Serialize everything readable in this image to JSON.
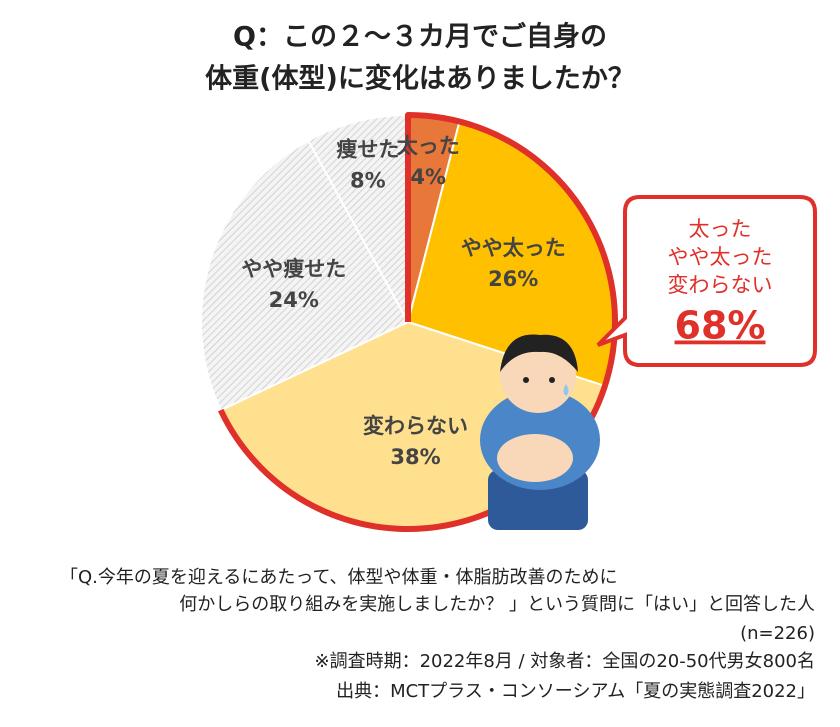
{
  "chart_data": {
    "type": "pie",
    "title": [
      "Q：この２～３カ月でご自身の",
      "体重(体型)に変化はありましたか？"
    ],
    "categories": [
      "太った",
      "やや太った",
      "変わらない",
      "やや痩せた",
      "痩せた"
    ],
    "values": [
      4,
      26,
      38,
      24,
      8
    ],
    "value_labels": [
      "4%",
      "26%",
      "38%",
      "24%",
      "8%"
    ],
    "colors": [
      "#e8783a",
      "#ffc000",
      "#ffe08f",
      "hatch",
      "hatch"
    ],
    "annotation": {
      "lines": [
        "太った",
        "やや太った",
        "変わらない"
      ],
      "total": "68%"
    },
    "notes": [
      "「Q.今年の夏を迎えるにあたって、体型や体重・体脂肪改善のために",
      "何かしらの取り組みを実施しましたか？ 」という質問に「はい」と回答した人",
      "(n=226)",
      "※調査時期：2022年8月 / 対象者：全国の20-50代男女800名",
      "出典：MCTプラス・コンソーシアム「夏の実態調査2022」"
    ]
  }
}
